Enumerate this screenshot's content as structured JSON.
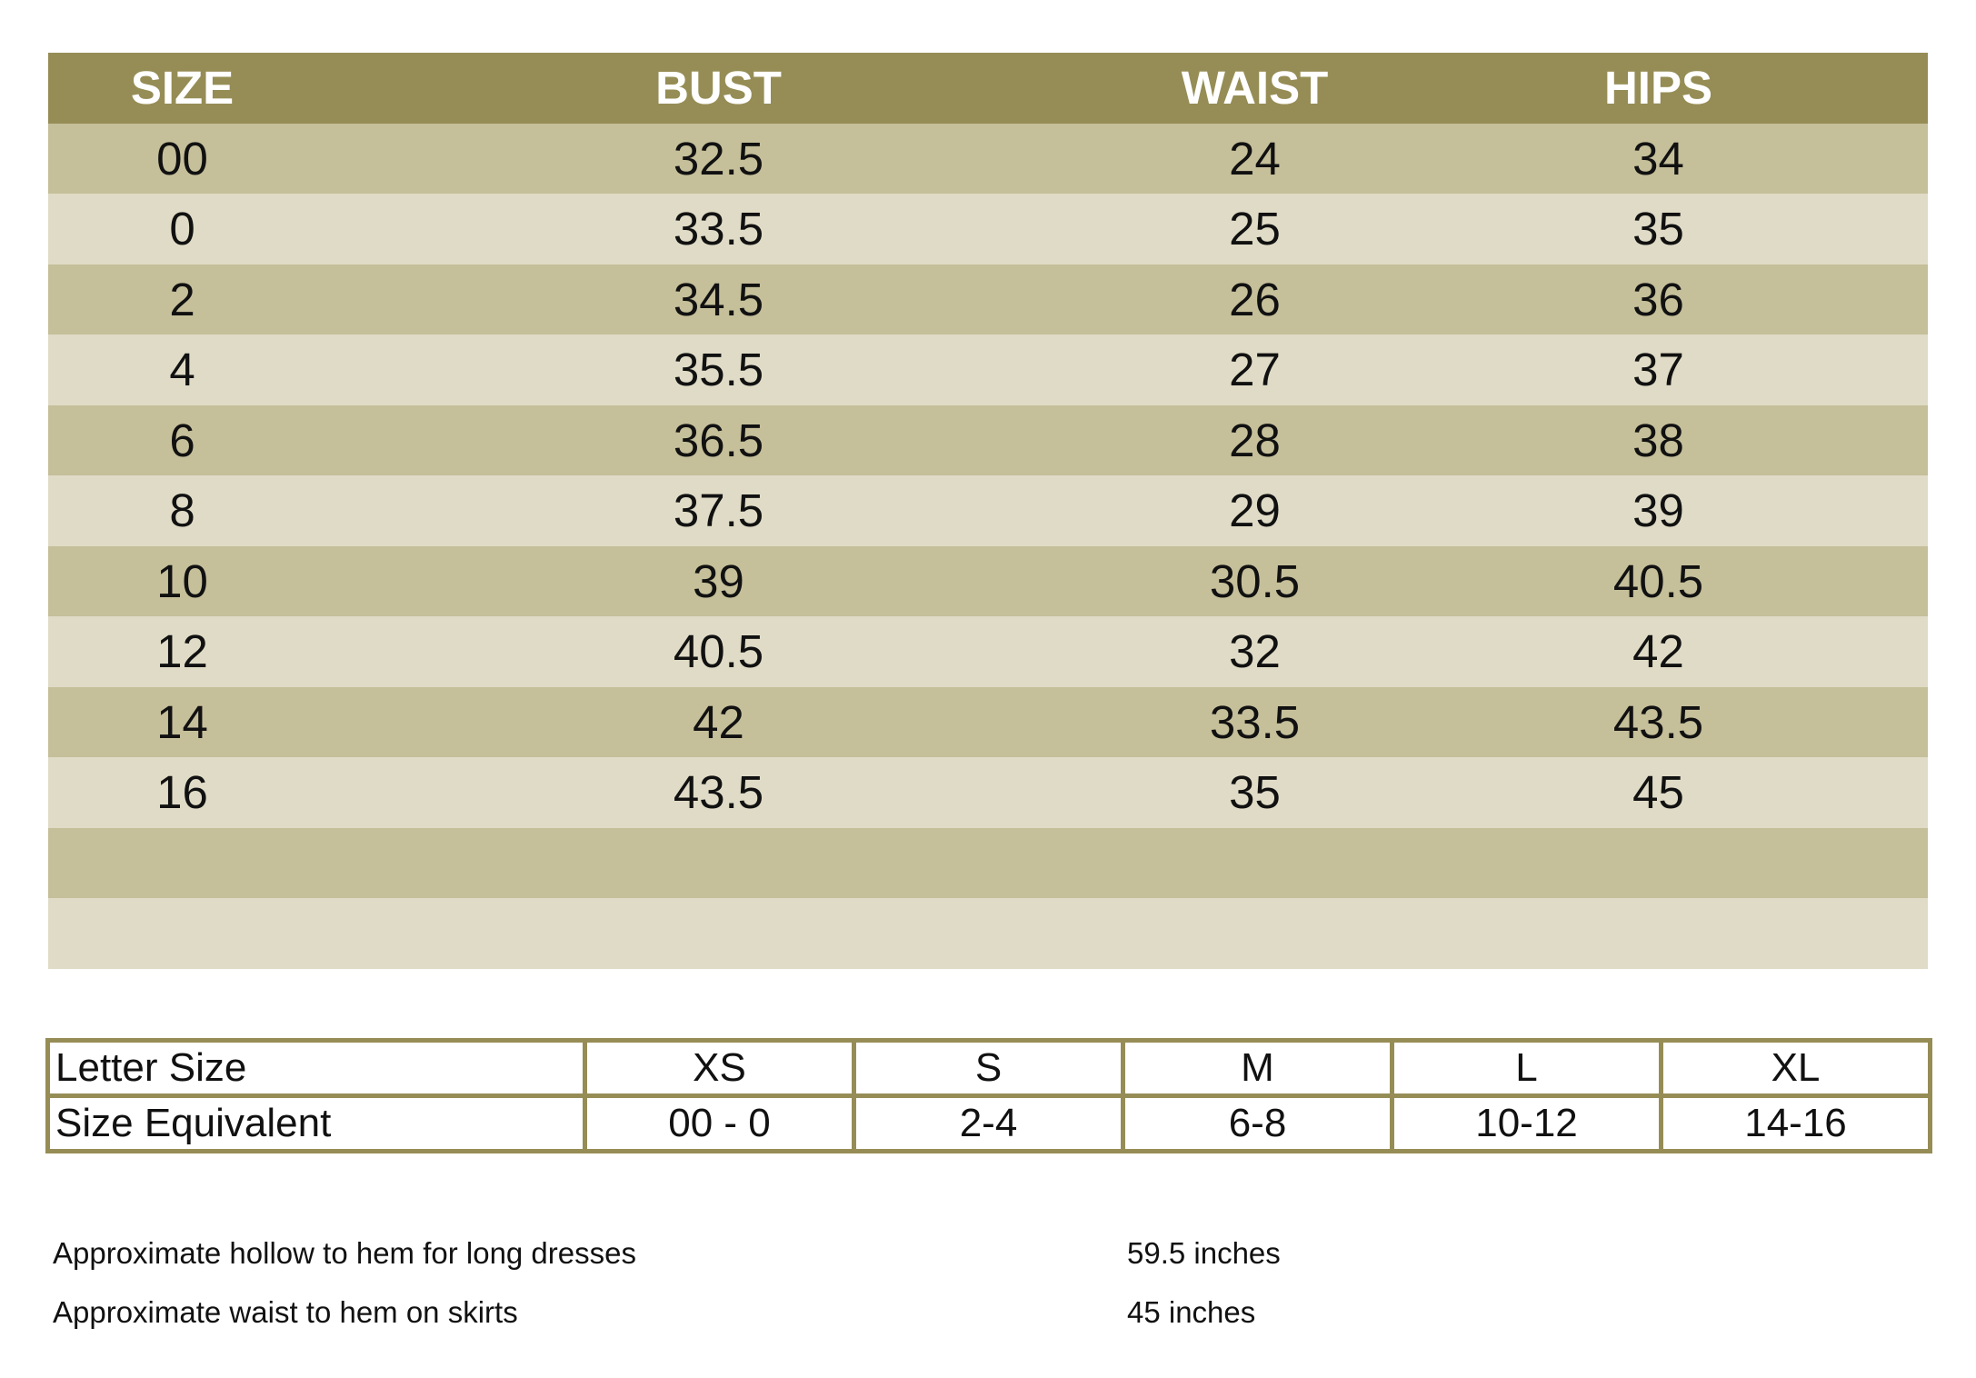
{
  "size_chart": {
    "headers": [
      "SIZE",
      "BUST",
      "WAIST",
      "HIPS"
    ],
    "rows": [
      [
        "00",
        "32.5",
        "24",
        "34"
      ],
      [
        "0",
        "33.5",
        "25",
        "35"
      ],
      [
        "2",
        "34.5",
        "26",
        "36"
      ],
      [
        "4",
        "35.5",
        "27",
        "37"
      ],
      [
        "6",
        "36.5",
        "28",
        "38"
      ],
      [
        "8",
        "37.5",
        "29",
        "39"
      ],
      [
        "10",
        "39",
        "30.5",
        "40.5"
      ],
      [
        "12",
        "40.5",
        "32",
        "42"
      ],
      [
        "14",
        "42",
        "33.5",
        "43.5"
      ],
      [
        "16",
        "43.5",
        "35",
        "45"
      ],
      [
        "",
        "",
        "",
        ""
      ],
      [
        "",
        "",
        "",
        ""
      ]
    ]
  },
  "letter_table": {
    "rows": [
      {
        "label": "Letter Size",
        "values": [
          "XS",
          "S",
          "M",
          "L",
          "XL"
        ]
      },
      {
        "label": "Size Equivalent",
        "values": [
          "00 - 0",
          "2-4",
          "6-8",
          "10-12",
          "14-16"
        ]
      }
    ]
  },
  "notes": [
    {
      "label": "Approximate hollow to hem for long dresses",
      "value": "59.5 inches"
    },
    {
      "label": "Approximate waist to hem on skirts",
      "value": "45 inches"
    }
  ],
  "colors": {
    "header_band": "#968d56",
    "row_band_dark": "#c5bf9a",
    "row_band_light": "#dfdbc6",
    "letter_table_border": "#968d56"
  }
}
